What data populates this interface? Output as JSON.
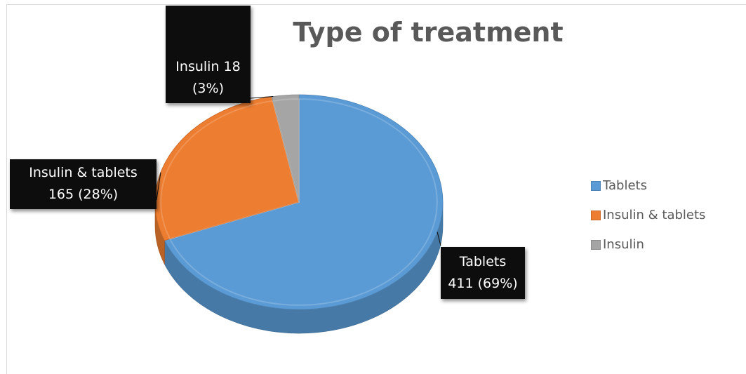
{
  "chart_data": {
    "type": "pie",
    "title": "Type of treatment",
    "categories": [
      "Tablets",
      "Insulin  & tablets",
      "Insulin"
    ],
    "values": [
      411,
      165,
      18
    ],
    "percentages": [
      "69%",
      "28%",
      "3%"
    ],
    "colors": [
      "#5b9bd5",
      "#ed7d31",
      "#a5a5a5"
    ],
    "data_labels": [
      {
        "line1": "Tablets",
        "line2": "411 (69%)"
      },
      {
        "line1": "Insulin  & tablets",
        "line2": "165 (28%)"
      },
      {
        "line1": "Insulin 18",
        "line2": "(3%)"
      }
    ],
    "legend": {
      "position": "right",
      "entries": [
        "Tablets",
        "Insulin  & tablets",
        "Insulin"
      ]
    },
    "style": "3d"
  }
}
